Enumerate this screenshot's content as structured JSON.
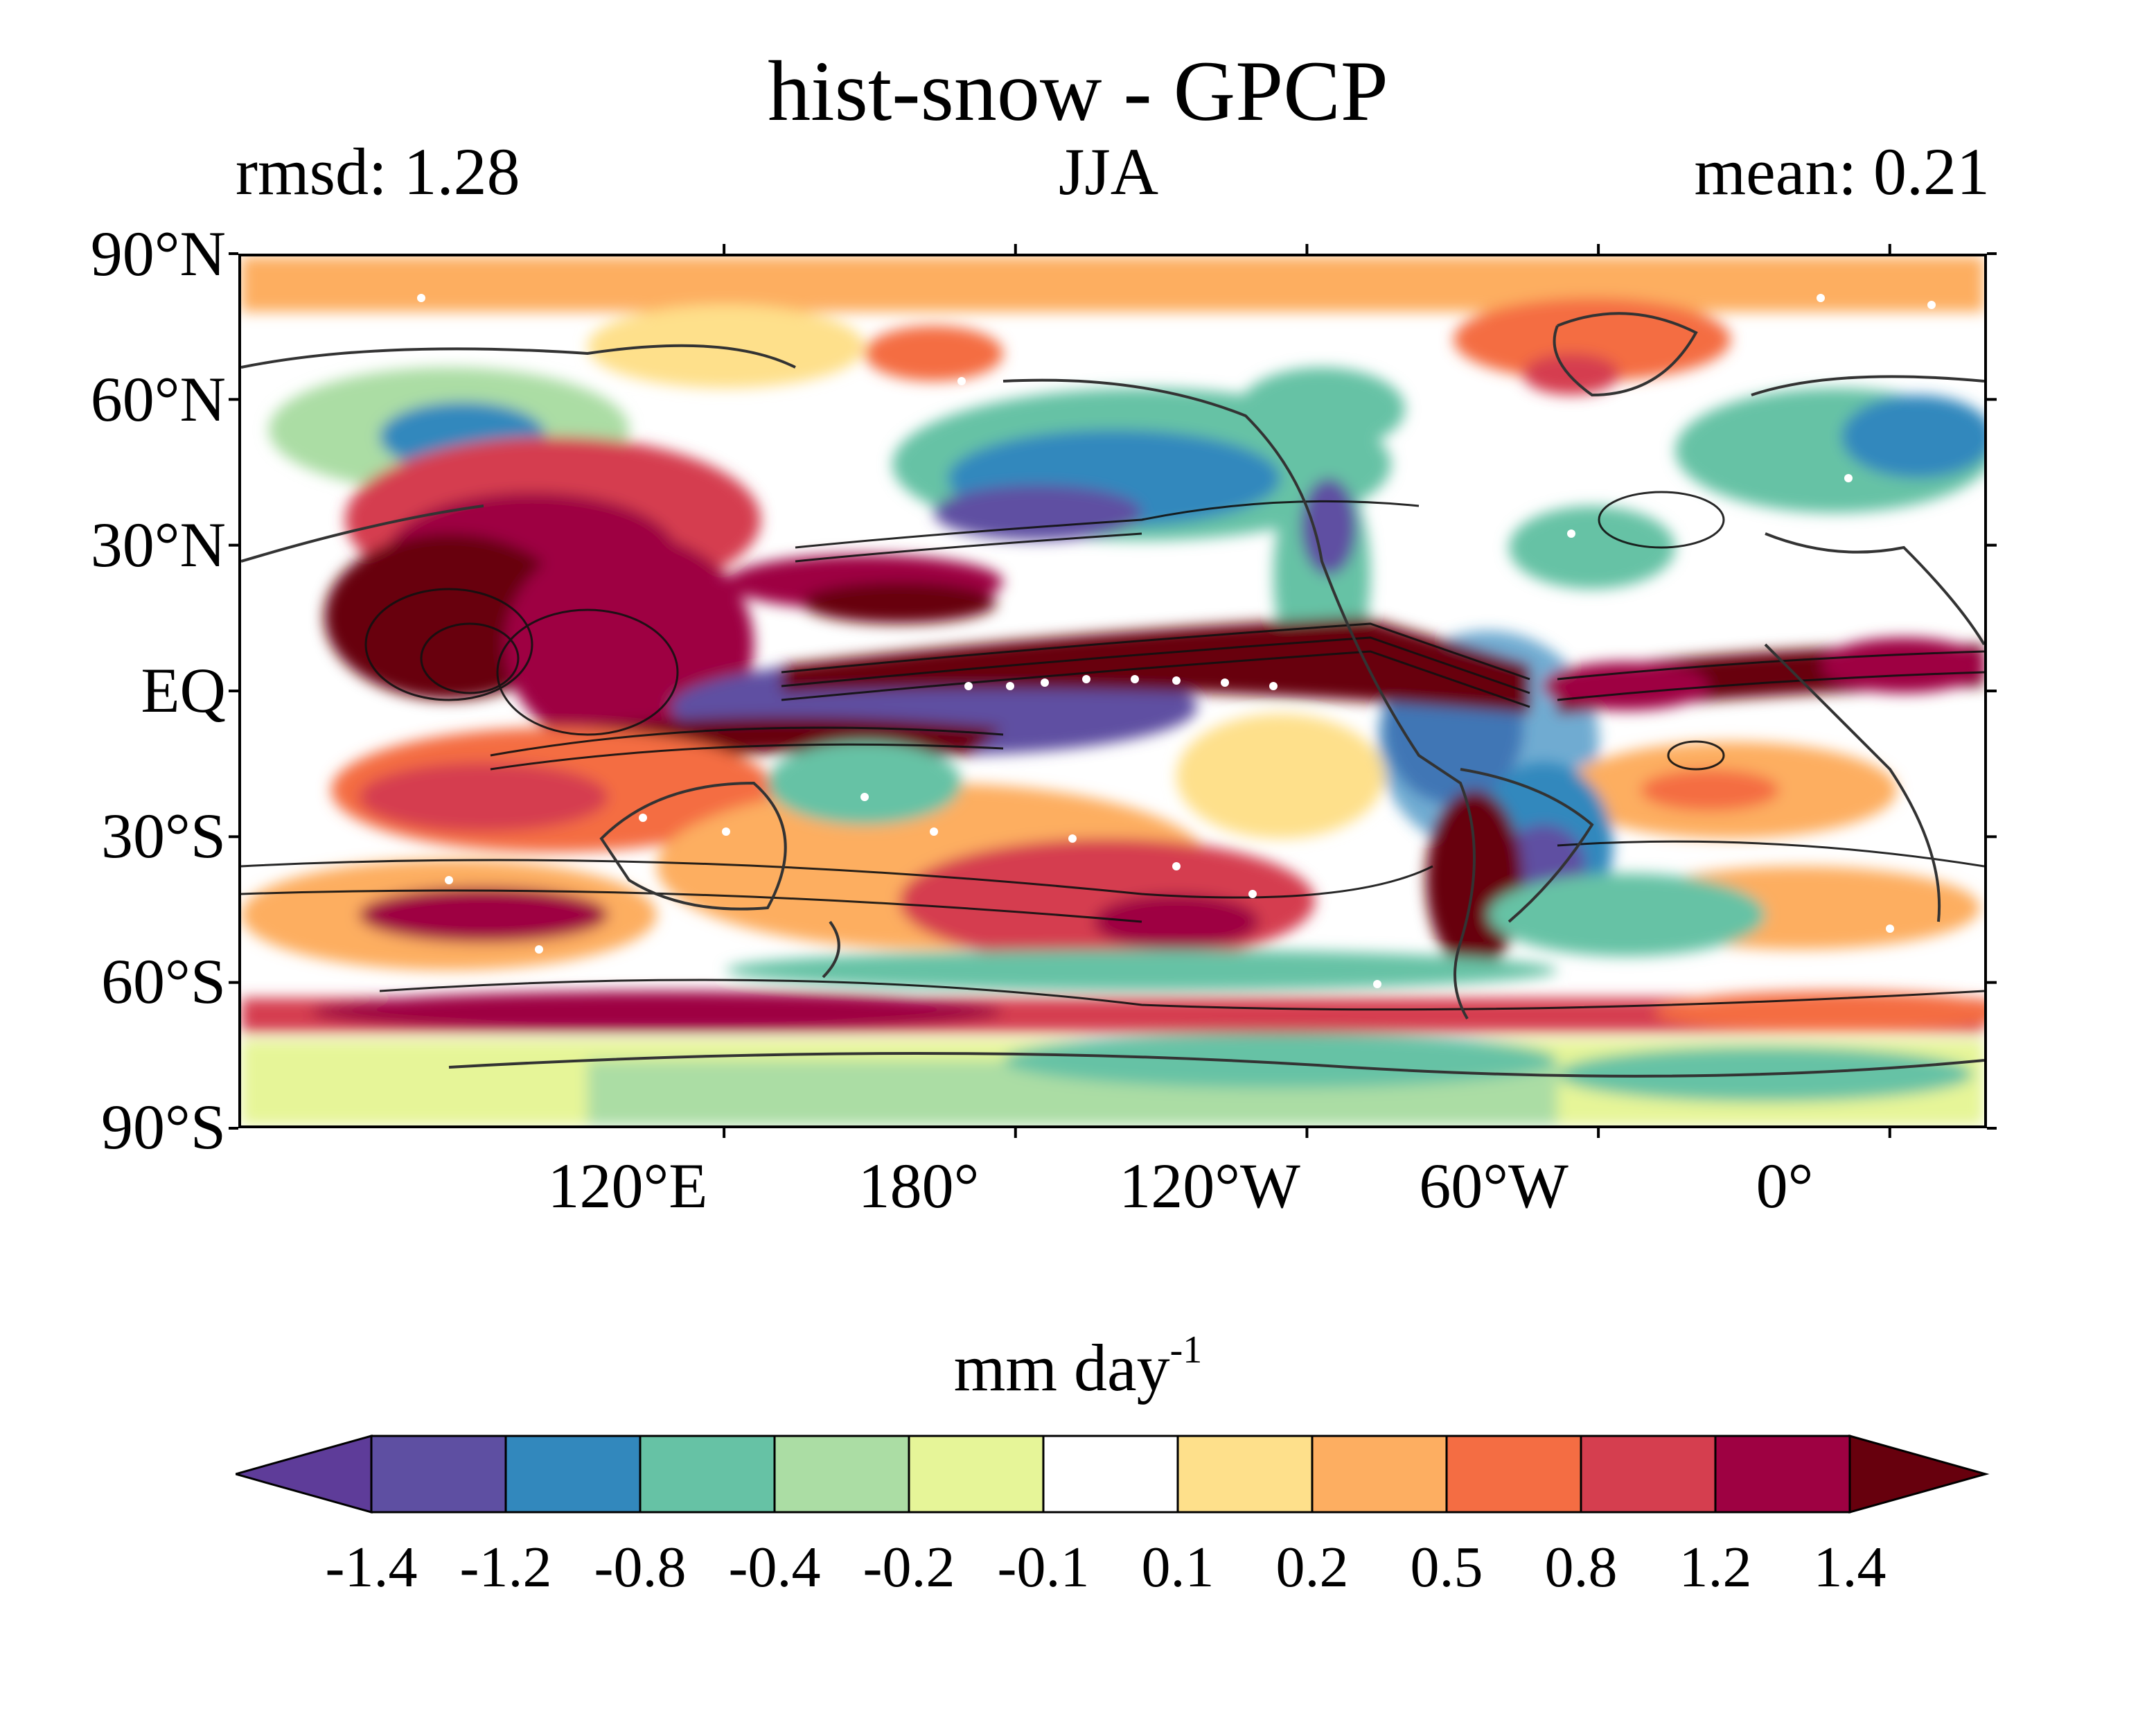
{
  "figure": {
    "title": "hist-snow - GPCP",
    "stats_left": "rmsd: 1.28",
    "season": "JJA",
    "stats_right": "mean: 0.21"
  },
  "map": {
    "projection": "equirectangular",
    "lon_range": [
      20,
      380
    ],
    "lat_range": [
      -90,
      90
    ],
    "lat_ticks": [
      {
        "lat": 90,
        "label": "90°N"
      },
      {
        "lat": 60,
        "label": "60°N"
      },
      {
        "lat": 30,
        "label": "30°N"
      },
      {
        "lat": 0,
        "label": "EQ"
      },
      {
        "lat": -30,
        "label": "30°S"
      },
      {
        "lat": -60,
        "label": "60°S"
      },
      {
        "lat": -90,
        "label": "90°S"
      }
    ],
    "lon_ticks": [
      {
        "lon": 120,
        "label": "120°E"
      },
      {
        "lon": 180,
        "label": "180°"
      },
      {
        "lon": 240,
        "label": "120°W"
      },
      {
        "lon": 300,
        "label": "60°W"
      },
      {
        "lon": 360,
        "label": "0°"
      }
    ],
    "features": {
      "coastlines": true,
      "contours": "black climatology contours",
      "stippling": "white dots"
    }
  },
  "colorbar": {
    "unit_label": "mm day",
    "unit_exponent": "-1",
    "extend": "both",
    "levels": [
      "-1.4",
      "-1.2",
      "-0.8",
      "-0.4",
      "-0.2",
      "-0.1",
      "0.1",
      "0.2",
      "0.5",
      "0.8",
      "1.2",
      "1.4"
    ],
    "colors": [
      "#5e3c99",
      "#5e4fa2",
      "#3288bd",
      "#66c2a5",
      "#abdda4",
      "#e6f598",
      "#ffffff",
      "#fee08b",
      "#fdae61",
      "#f46d43",
      "#d53e4f",
      "#9e0142",
      "#67000d"
    ]
  }
}
